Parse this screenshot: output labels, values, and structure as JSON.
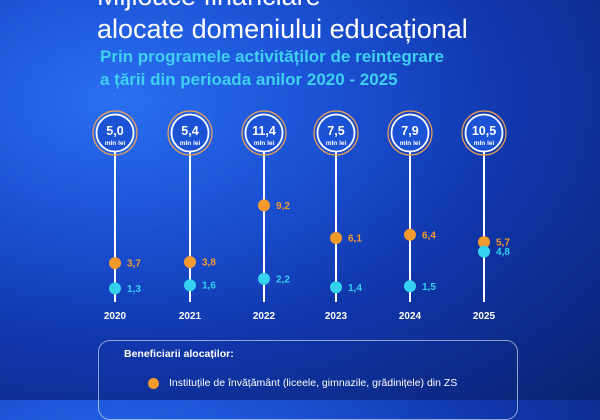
{
  "header": {
    "title_line1": "Mijloace financiare",
    "title_line2": "alocate domeniului educațional",
    "subtitle_line1": "Prin programele activităților de reintegrare",
    "subtitle_line2": "a țării din perioada anilor 2020 - 2025"
  },
  "colors": {
    "orange": "#f29a2e",
    "cyan": "#34d2f0",
    "circle_ring_outer": "#f0a050",
    "circle_ring_inner": "#ffffff",
    "background": "#1b52d6"
  },
  "chart_data": {
    "type": "dot-timeline",
    "unit": "mln lei",
    "categories": [
      "2020",
      "2021",
      "2022",
      "2023",
      "2024",
      "2025"
    ],
    "totals": [
      "5,0",
      "5,4",
      "11,4",
      "7,5",
      "7,9",
      "10,5"
    ],
    "series": [
      {
        "key": "orange",
        "values": [
          3.7,
          3.8,
          9.2,
          6.1,
          6.4,
          5.7
        ],
        "labels": [
          "3,7",
          "3,8",
          "9,2",
          "6,1",
          "6,4",
          "5,7"
        ]
      },
      {
        "key": "cyan",
        "values": [
          1.3,
          1.6,
          2.2,
          1.4,
          1.5,
          4.8
        ],
        "labels": [
          "1,3",
          "1,6",
          "2,2",
          "1,4",
          "1,5",
          "4,8"
        ]
      }
    ]
  },
  "legend": {
    "title": "Beneficiarii alocaților:",
    "items": [
      {
        "color_key": "orange",
        "label": "Instituțile de învățământ (liceele, gimnazile, grădinițele) din ZS"
      }
    ]
  }
}
